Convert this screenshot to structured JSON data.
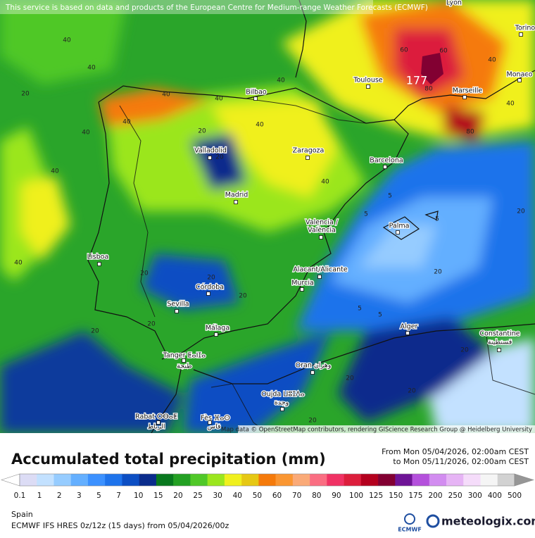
{
  "notice": "This service is based on data and products of the European Centre for Medium-range Weather Forecasts (ECMWF)",
  "map": {
    "cities": [
      "Lyon",
      "Torino",
      "Monaco",
      "Marseille",
      "Toulouse",
      "Bilbao",
      "Valladolid",
      "Zaragoza",
      "Barcelona",
      "Madrid",
      "Valencia /",
      "València",
      "Palma",
      "Lisboa",
      "Alacant/Alicante",
      "Murcia",
      "Córdoba",
      "Sevilla",
      "Málaga",
      "Alger",
      "Constantine",
      "قسنطينة",
      "Tanger ⵟⴰⵏⵊⴰ",
      "طنجة",
      "Oran وهران",
      "Oujda ⵡⵓⵊⴷⴰ",
      "وجدة",
      "Rabat ⵔⴱⴰⵟ",
      "الرباط",
      "Fès ⴼⴰⵙ",
      "فاس"
    ],
    "contour_labels": [
      "40",
      "40",
      "40",
      "40",
      "40",
      "20",
      "40",
      "40",
      "40",
      "20",
      "20",
      "40",
      "40",
      "20",
      "20",
      "20",
      "5",
      "5",
      "5",
      "5",
      "20",
      "20",
      "20",
      "20",
      "60",
      "80",
      "80",
      "60",
      "40",
      "40",
      "20",
      "20",
      "5",
      "20",
      "20",
      "40"
    ],
    "max_label": "177",
    "credit": "Map data © OpenStreetMap contributors, rendering GIScience Research Group @ Heidelberg University"
  },
  "legend": {
    "title": "Accumulated total precipitation (mm)",
    "valid_from": "From Mon 05/04/2026, 02:00am CEST",
    "valid_to": "to Mon 05/11/2026, 02:00am CEST",
    "labels": [
      "0.1",
      "1",
      "2",
      "3",
      "5",
      "7",
      "10",
      "15",
      "20",
      "25",
      "30",
      "40",
      "50",
      "60",
      "70",
      "80",
      "90",
      "100",
      "125",
      "150",
      "175",
      "200",
      "250",
      "300",
      "400",
      "500"
    ],
    "colors": [
      "#ffffff",
      "#dcdcf5",
      "#c3e1ff",
      "#96ccff",
      "#64afff",
      "#3c91ff",
      "#1e73eb",
      "#0c4ec3",
      "#0a2c8c",
      "#08781e",
      "#23a023",
      "#50c828",
      "#9be61e",
      "#f0f01e",
      "#e6c814",
      "#f57a0a",
      "#fa9632",
      "#faaa78",
      "#fa6e82",
      "#f03264",
      "#dc1e3c",
      "#b4001e",
      "#820032",
      "#6e1496",
      "#b450dc",
      "#d28cf0",
      "#e6b4f5",
      "#f5dcfa",
      "#f5f5f5",
      "#d2d2d2",
      "#969696"
    ]
  },
  "footer": {
    "region": "Spain",
    "model": "ECMWF IFS HRES 0z/12z (15 days) from 05/04/2026/00z",
    "ecmwf_logo": "ECMWF",
    "brand": "meteologix.com"
  }
}
